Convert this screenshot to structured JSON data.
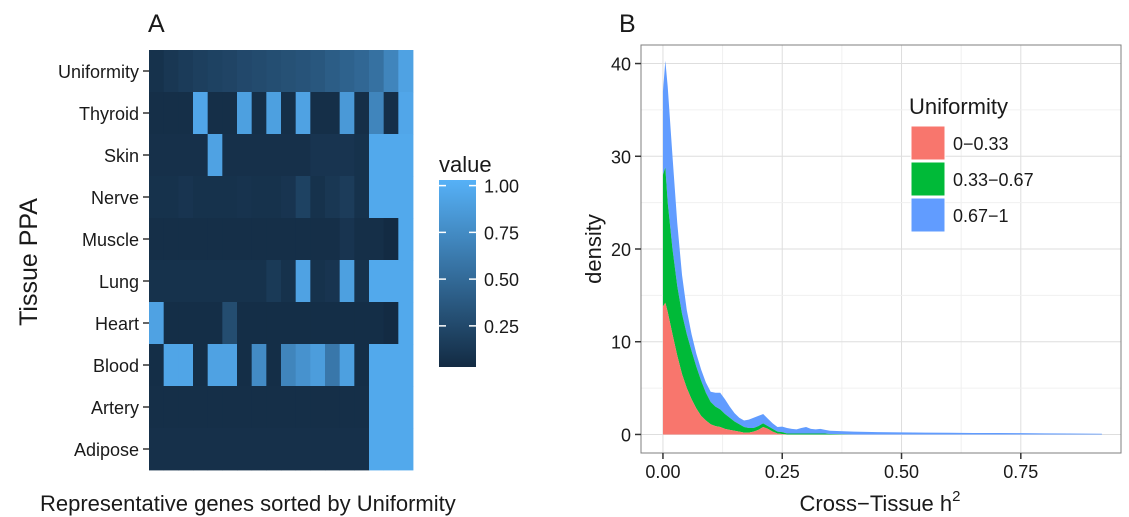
{
  "chart_data": [
    {
      "panel_label": "A",
      "type": "heatmap",
      "title": "",
      "xlabel": "Representative genes sorted by Uniformity",
      "ylabel": "Tissue PPA",
      "rows": [
        "Uniformity",
        "Thyroid",
        "Skin",
        "Nerve",
        "Muscle",
        "Lung",
        "Heart",
        "Blood",
        "Artery",
        "Adipose"
      ],
      "n_columns": 18,
      "values": [
        [
          0.08,
          0.12,
          0.15,
          0.18,
          0.2,
          0.22,
          0.25,
          0.27,
          0.29,
          0.31,
          0.33,
          0.36,
          0.4,
          0.44,
          0.48,
          0.55,
          0.7,
          0.92
        ],
        [
          0.06,
          0.06,
          0.06,
          0.95,
          0.06,
          0.06,
          0.9,
          0.06,
          0.9,
          0.06,
          0.92,
          0.06,
          0.06,
          0.85,
          0.06,
          0.7,
          0.06,
          0.95
        ],
        [
          0.07,
          0.07,
          0.07,
          0.07,
          0.92,
          0.07,
          0.07,
          0.07,
          0.07,
          0.07,
          0.07,
          0.1,
          0.1,
          0.1,
          0.08,
          0.97,
          0.97,
          0.97
        ],
        [
          0.08,
          0.08,
          0.1,
          0.08,
          0.08,
          0.08,
          0.09,
          0.08,
          0.08,
          0.1,
          0.2,
          0.08,
          0.12,
          0.16,
          0.08,
          0.97,
          0.97,
          0.97
        ],
        [
          0.06,
          0.06,
          0.06,
          0.06,
          0.06,
          0.06,
          0.06,
          0.06,
          0.06,
          0.06,
          0.06,
          0.06,
          0.06,
          0.1,
          0.06,
          0.06,
          0.03,
          0.97
        ],
        [
          0.08,
          0.08,
          0.08,
          0.08,
          0.08,
          0.08,
          0.08,
          0.08,
          0.14,
          0.08,
          0.92,
          0.08,
          0.1,
          0.9,
          0.08,
          0.97,
          0.97,
          0.97
        ],
        [
          0.92,
          0.05,
          0.05,
          0.05,
          0.05,
          0.28,
          0.05,
          0.05,
          0.05,
          0.05,
          0.05,
          0.05,
          0.05,
          0.05,
          0.05,
          0.05,
          0.03,
          0.97
        ],
        [
          0.05,
          0.94,
          0.94,
          0.05,
          0.92,
          0.92,
          0.05,
          0.75,
          0.05,
          0.7,
          0.8,
          0.88,
          0.6,
          0.9,
          0.05,
          0.97,
          0.97,
          0.97
        ],
        [
          0.06,
          0.06,
          0.06,
          0.06,
          0.06,
          0.06,
          0.06,
          0.06,
          0.06,
          0.06,
          0.06,
          0.06,
          0.06,
          0.06,
          0.06,
          0.97,
          0.97,
          0.97
        ],
        [
          0.07,
          0.07,
          0.07,
          0.07,
          0.07,
          0.07,
          0.07,
          0.07,
          0.07,
          0.07,
          0.07,
          0.07,
          0.07,
          0.07,
          0.07,
          0.97,
          0.97,
          0.97
        ]
      ],
      "legend": {
        "title": "value",
        "ticks": [
          "0.25",
          "0.50",
          "0.75",
          "1.00"
        ],
        "tick_values": [
          0.25,
          0.5,
          0.75,
          1.0
        ],
        "range": [
          0.03,
          1.03
        ],
        "colors": {
          "low": "#132b43",
          "high": "#56b1f7"
        }
      }
    },
    {
      "panel_label": "B",
      "type": "area",
      "stacked": true,
      "title": "",
      "xlabel_main": "Cross−Tissue h",
      "xlabel_sup": "2",
      "ylabel": "density",
      "xlim": [
        -0.046,
        0.96
      ],
      "ylim": [
        -2,
        42
      ],
      "xticks": [
        0.0,
        0.25,
        0.5,
        0.75
      ],
      "xtick_labels": [
        "0.00",
        "0.25",
        "0.50",
        "0.75"
      ],
      "yticks": [
        0,
        10,
        20,
        30,
        40
      ],
      "ytick_labels": [
        "0",
        "10",
        "20",
        "30",
        "40"
      ],
      "grid": true,
      "x": [
        0,
        0.005,
        0.01,
        0.02,
        0.03,
        0.04,
        0.05,
        0.06,
        0.07,
        0.08,
        0.09,
        0.1,
        0.11,
        0.12,
        0.13,
        0.14,
        0.15,
        0.16,
        0.17,
        0.18,
        0.19,
        0.2,
        0.21,
        0.22,
        0.23,
        0.24,
        0.25,
        0.26,
        0.27,
        0.28,
        0.29,
        0.3,
        0.31,
        0.32,
        0.33,
        0.34,
        0.35,
        0.4,
        0.45,
        0.5,
        0.55,
        0.6,
        0.65,
        0.7,
        0.75,
        0.8,
        0.85,
        0.92
      ],
      "legend": {
        "title": "Uniformity",
        "position": "top-right"
      },
      "series": [
        {
          "name": "0−0.33",
          "color": "#f8766d",
          "values": [
            13.8,
            14.2,
            13.2,
            10.8,
            8.5,
            6.5,
            5.0,
            3.8,
            2.8,
            2.0,
            1.5,
            1.1,
            0.9,
            0.8,
            0.6,
            0.5,
            0.4,
            0.3,
            0.2,
            0.2,
            0.3,
            0.5,
            0.8,
            0.6,
            0.3,
            0.1,
            0.05,
            0,
            0,
            0,
            0,
            0,
            0,
            0,
            0,
            0,
            0,
            0,
            0,
            0,
            0,
            0,
            0,
            0,
            0,
            0,
            0,
            0
          ]
        },
        {
          "name": "0.33−0.67",
          "color": "#00ba38",
          "values": [
            14.2,
            14.6,
            11.8,
            9.2,
            7.5,
            6.5,
            5.8,
            5.2,
            4.5,
            3.8,
            3.0,
            2.4,
            2.1,
            1.9,
            1.6,
            1.3,
            1.0,
            0.8,
            0.6,
            0.5,
            0.4,
            0.4,
            0.4,
            0.3,
            0.3,
            0.2,
            0.2,
            0.1,
            0.1,
            0.1,
            0.1,
            0.1,
            0.1,
            0.1,
            0.1,
            0.1,
            0.05,
            0,
            0,
            0,
            0,
            0,
            0,
            0,
            0,
            0,
            0,
            0
          ]
        },
        {
          "name": "0.67−1",
          "color": "#619cff",
          "values": [
            9.0,
            11.5,
            12.5,
            10.0,
            6.8,
            4.2,
            2.6,
            1.8,
            1.4,
            1.2,
            1.1,
            1.1,
            1.5,
            1.8,
            1.6,
            1.2,
            0.9,
            0.7,
            0.7,
            0.9,
            1.1,
            1.1,
            1.0,
            0.8,
            0.6,
            0.5,
            0.6,
            0.6,
            0.5,
            0.45,
            0.6,
            0.7,
            0.5,
            0.45,
            0.5,
            0.4,
            0.35,
            0.3,
            0.25,
            0.22,
            0.2,
            0.18,
            0.16,
            0.15,
            0.14,
            0.12,
            0.1,
            0.08
          ]
        }
      ]
    }
  ]
}
